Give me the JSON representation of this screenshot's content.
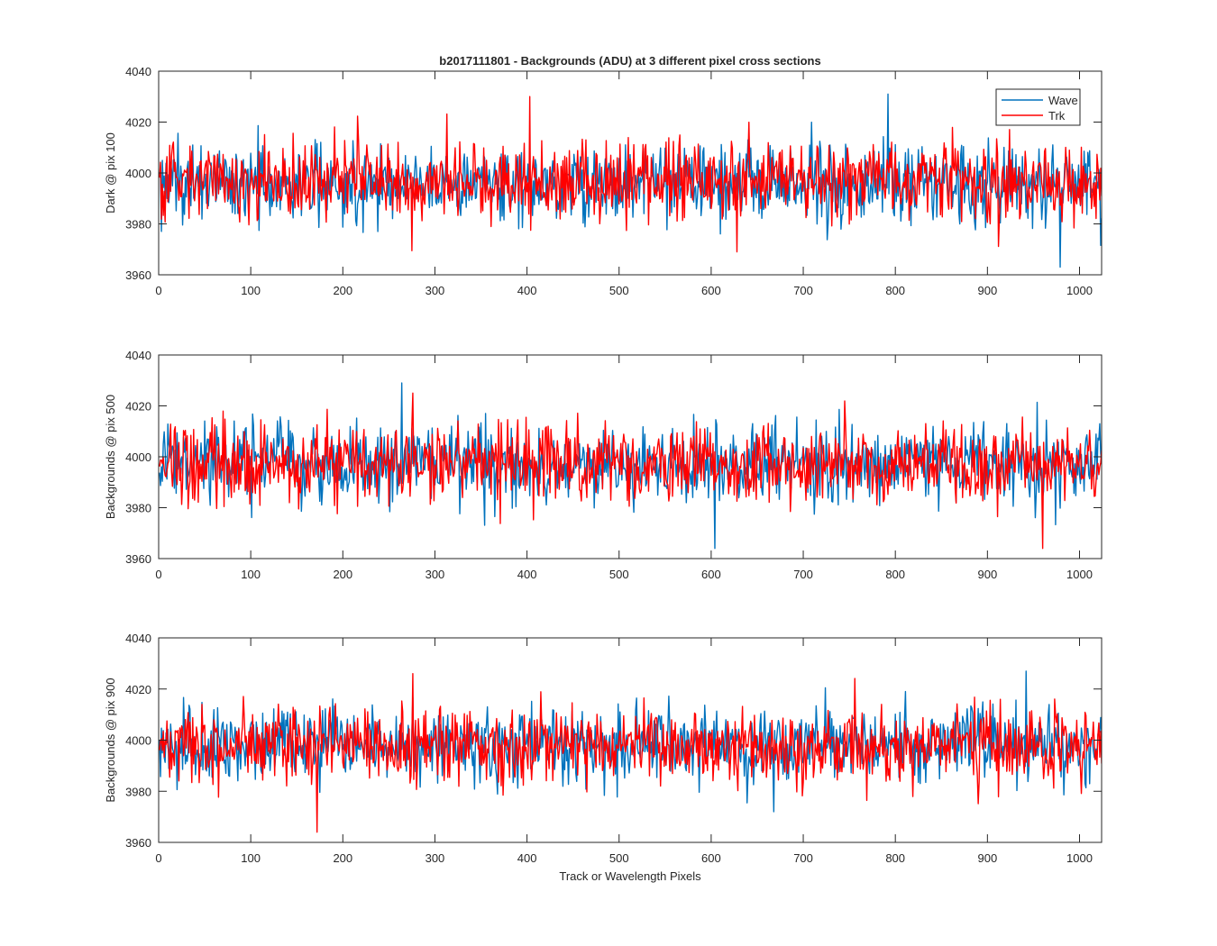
{
  "chart_data": [
    {
      "type": "line",
      "title": "b2017111801 - Backgrounds (ADU) at 3 different pixel cross sections",
      "xlabel": "",
      "ylabel": "Dark @ pix 100",
      "xlim": [
        0,
        1024
      ],
      "ylim": [
        3960,
        4040
      ],
      "xticks": [
        0,
        100,
        200,
        300,
        400,
        500,
        600,
        700,
        800,
        900,
        1000
      ],
      "yticks": [
        3960,
        3980,
        4000,
        4020,
        4040
      ],
      "legend": {
        "placement": "top-right",
        "entries": [
          "Wave",
          "Trk"
        ]
      },
      "series": [
        {
          "name": "Wave",
          "color": "#0072bd",
          "mean": 3996,
          "std": 7.5,
          "min": 3963,
          "max": 4031,
          "count": 1024
        },
        {
          "name": "Trk",
          "color": "#ff0000",
          "mean": 3997,
          "std": 7.5,
          "min": 3969,
          "max": 4030,
          "count": 1024
        }
      ]
    },
    {
      "type": "line",
      "title": "",
      "xlabel": "",
      "ylabel": "Backgrounds @ pix 500",
      "xlim": [
        0,
        1024
      ],
      "ylim": [
        3960,
        4040
      ],
      "xticks": [
        0,
        100,
        200,
        300,
        400,
        500,
        600,
        700,
        800,
        900,
        1000
      ],
      "yticks": [
        3960,
        3980,
        4000,
        4020,
        4040
      ],
      "series": [
        {
          "name": "Wave",
          "color": "#0072bd",
          "mean": 3997,
          "std": 7.5,
          "min": 3964,
          "max": 4029,
          "count": 1024
        },
        {
          "name": "Trk",
          "color": "#ff0000",
          "mean": 3997,
          "std": 7.5,
          "min": 3964,
          "max": 4025,
          "count": 1024
        }
      ]
    },
    {
      "type": "line",
      "title": "",
      "xlabel": "Track or Wavelength Pixels",
      "ylabel": "Backgrounds @ pix 900",
      "xlim": [
        0,
        1024
      ],
      "ylim": [
        3960,
        4040
      ],
      "xticks": [
        0,
        100,
        200,
        300,
        400,
        500,
        600,
        700,
        800,
        900,
        1000
      ],
      "yticks": [
        3960,
        3980,
        4000,
        4020,
        4040
      ],
      "series": [
        {
          "name": "Wave",
          "color": "#0072bd",
          "mean": 3998,
          "std": 7.5,
          "min": 3972,
          "max": 4027,
          "count": 1024
        },
        {
          "name": "Trk",
          "color": "#ff0000",
          "mean": 3998,
          "std": 7.5,
          "min": 3964,
          "max": 4026,
          "count": 1024
        }
      ]
    }
  ]
}
